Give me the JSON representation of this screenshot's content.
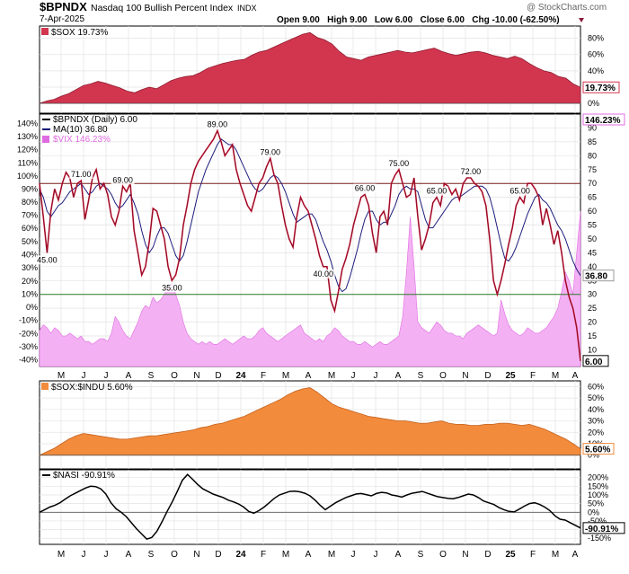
{
  "header": {
    "symbol": "$BPNDX",
    "name": "Nasdaq 100 Bullish Percent Index",
    "exchange": "INDX",
    "date": "7-Apr-2025",
    "credit": "@ StockCharts.com",
    "ohlc": "Open 9.00   High 9.00   Low 6.00   Close 6.00   Chg -10.00 (-62.50%)"
  },
  "months": [
    "M",
    "J",
    "J",
    "A",
    "S",
    "O",
    "N",
    "D",
    "24",
    "F",
    "M",
    "A",
    "M",
    "J",
    "J",
    "A",
    "S",
    "O",
    "N",
    "D",
    "25",
    "F",
    "M",
    "A"
  ],
  "chart_data": [
    {
      "type": "area",
      "panel": "sox",
      "legend": "$SOX 19.73%",
      "last_label": "19.73%",
      "color": "#d2364f",
      "ylim": [
        -12,
        95
      ],
      "yticks": [
        "80%",
        "60%",
        "40%",
        "20%",
        "0%"
      ],
      "ytick_values": [
        80,
        60,
        40,
        20,
        0
      ],
      "baseline": 0,
      "values": [
        0,
        3,
        5,
        9,
        12,
        17,
        22,
        24,
        27,
        25,
        22,
        19,
        15,
        13,
        17,
        20,
        18,
        23,
        28,
        31,
        33,
        34,
        38,
        43,
        46,
        49,
        51,
        53,
        54,
        59,
        63,
        65,
        69,
        73,
        77,
        81,
        85,
        87,
        81,
        78,
        73,
        64,
        57,
        55,
        53,
        57,
        59,
        61,
        63,
        65,
        63,
        62,
        64,
        66,
        68,
        64,
        61,
        59,
        61,
        63,
        64,
        62,
        59,
        57,
        55,
        58,
        55,
        49,
        44,
        40,
        38,
        33,
        31,
        24,
        19.73
      ]
    },
    {
      "type": "line",
      "panel": "bpndx",
      "legend": [
        "$BPNDX (Daily) 6.00",
        "MA(10) 36.80",
        "$VIX 146.23%"
      ],
      "last_labels": {
        "bpndx": "6.00",
        "ma": "36.80",
        "vix": "146.23%"
      },
      "colors": {
        "bpndx": "#cc1133",
        "ma": "#1c1c7c",
        "vix": "#e06be0",
        "vix_fill": "#f3b1f3",
        "upper": "#7a1c1c",
        "lower": "#2a7a2a"
      },
      "ylim": [
        4,
        95
      ],
      "right_ticks": [
        "90",
        "85",
        "80",
        "75",
        "70",
        "65",
        "60",
        "55",
        "50",
        "45",
        "40",
        "35",
        "30",
        "25",
        "20",
        "15",
        "10",
        "5"
      ],
      "right_tick_values": [
        90,
        85,
        80,
        75,
        70,
        65,
        60,
        55,
        50,
        45,
        40,
        35,
        30,
        25,
        20,
        15,
        10,
        5
      ],
      "left_ticks": [
        "140%",
        "130%",
        "120%",
        "110%",
        "100%",
        "90%",
        "80%",
        "70%",
        "60%",
        "50%",
        "40%",
        "30%",
        "20%",
        "10%",
        "0%",
        "-10%",
        "-20%",
        "-30%",
        "-40%"
      ],
      "left_tick_values": [
        91.6,
        86.9,
        82.2,
        77.4,
        72.7,
        68.0,
        63.2,
        58.5,
        53.8,
        49.0,
        44.3,
        39.6,
        34.8,
        30.1,
        25.4,
        20.7,
        15.9,
        11.2,
        6.5
      ],
      "upper_line": 70,
      "lower_line": 30,
      "values": [
        70,
        58,
        45,
        60,
        68,
        64,
        70,
        74,
        72,
        65,
        70,
        71,
        57,
        64,
        72,
        75,
        68,
        70,
        66,
        58,
        55,
        60,
        69,
        67,
        70,
        53,
        45,
        37,
        40,
        49,
        61,
        60,
        55,
        50,
        40,
        35,
        37,
        43,
        55,
        62,
        70,
        75,
        78,
        80,
        82,
        84,
        86,
        89,
        85,
        80,
        82,
        84,
        75,
        70,
        66,
        62,
        60,
        65,
        70,
        72,
        76,
        79,
        73,
        70,
        62,
        55,
        50,
        47,
        58,
        65,
        62,
        60,
        55,
        50,
        44,
        40,
        40,
        28,
        24,
        31,
        39,
        43,
        48,
        55,
        60,
        65,
        66,
        62,
        52,
        45,
        58,
        60,
        55,
        70,
        73,
        75,
        70,
        65,
        66,
        72,
        58,
        46,
        50,
        55,
        63,
        65,
        62,
        70,
        69,
        66,
        68,
        64,
        70,
        72,
        72,
        70,
        69,
        67,
        62,
        50,
        35,
        30,
        35,
        41,
        48,
        54,
        62,
        65,
        63,
        70,
        70,
        68,
        65,
        55,
        61,
        55,
        48,
        53,
        45,
        35,
        29,
        25,
        18,
        6
      ],
      "ma": [
        68,
        65,
        60,
        58,
        60,
        62,
        63,
        65,
        67,
        68,
        69,
        70,
        68,
        66,
        67,
        69,
        70,
        69,
        68,
        66,
        63,
        61,
        62,
        64,
        66,
        63,
        59,
        53,
        48,
        45,
        47,
        51,
        54,
        54,
        52,
        48,
        44,
        42,
        44,
        49,
        55,
        61,
        67,
        71,
        75,
        78,
        81,
        84,
        86,
        85,
        84,
        84,
        82,
        79,
        76,
        73,
        70,
        68,
        67,
        68,
        70,
        72,
        73,
        72,
        70,
        67,
        63,
        59,
        56,
        57,
        58,
        59,
        59,
        57,
        53,
        49,
        46,
        42,
        37,
        33,
        31,
        32,
        36,
        41,
        46,
        52,
        57,
        60,
        60,
        57,
        55,
        56,
        56,
        59,
        62,
        66,
        68,
        69,
        68,
        68,
        67,
        62,
        57,
        54,
        54,
        56,
        58,
        60,
        62,
        64,
        65,
        65,
        66,
        67,
        68,
        69,
        69,
        69,
        68,
        65,
        60,
        54,
        48,
        43,
        42,
        44,
        47,
        51,
        55,
        59,
        62,
        65,
        66,
        64,
        63,
        61,
        58,
        55,
        53,
        50,
        46,
        42,
        39,
        36.8
      ],
      "vix": [
        17,
        19,
        18,
        16,
        18,
        17,
        15,
        15,
        16,
        15,
        14,
        15,
        13,
        13,
        12,
        13,
        14,
        14,
        13,
        16,
        22,
        20,
        17,
        15,
        14,
        17,
        20,
        24,
        26,
        25,
        29,
        27,
        28,
        30,
        33,
        34,
        30,
        26,
        20,
        16,
        14,
        13,
        12,
        13,
        12,
        13,
        12,
        12,
        13,
        14,
        13,
        12,
        13,
        14,
        15,
        14,
        14,
        15,
        17,
        18,
        16,
        15,
        14,
        13,
        14,
        15,
        16,
        17,
        18,
        19,
        16,
        15,
        14,
        13,
        14,
        13,
        15,
        16,
        18,
        17,
        15,
        14,
        13,
        13,
        12,
        12,
        13,
        12,
        11,
        12,
        13,
        12,
        12,
        13,
        14,
        15,
        22,
        38,
        58,
        40,
        20,
        18,
        17,
        16,
        18,
        20,
        19,
        17,
        16,
        16,
        15,
        15,
        14,
        16,
        17,
        18,
        19,
        18,
        17,
        16,
        15,
        16,
        28,
        23,
        19,
        17,
        16,
        15,
        16,
        18,
        17,
        16,
        16,
        17,
        18,
        20,
        22,
        25,
        31,
        38,
        35,
        30,
        45,
        60
      ]
    },
    {
      "type": "area",
      "panel": "sox_indu",
      "legend": "$SOX:$INDU 5.60%",
      "last_label": "5.60%",
      "color": "#f28b3c",
      "ylim": [
        -12,
        65
      ],
      "yticks": [
        "60%",
        "50%",
        "40%",
        "30%",
        "20%",
        "10%",
        "0%"
      ],
      "ytick_values": [
        60,
        50,
        40,
        30,
        20,
        10,
        0
      ],
      "baseline": 0,
      "values": [
        0,
        3,
        6,
        10,
        14,
        17,
        19,
        18,
        17,
        16,
        15,
        14,
        14,
        15,
        16,
        17,
        17,
        18,
        19,
        20,
        21,
        22,
        24,
        25,
        27,
        28,
        30,
        32,
        34,
        37,
        40,
        43,
        46,
        49,
        53,
        56,
        58,
        59,
        55,
        50,
        45,
        42,
        40,
        38,
        36,
        34,
        33,
        32,
        31,
        30,
        30,
        29,
        28,
        28,
        29,
        30,
        28,
        27,
        27,
        26,
        26,
        27,
        27,
        28,
        28,
        27,
        26,
        27,
        25,
        23,
        20,
        17,
        14,
        10,
        5.6
      ]
    },
    {
      "type": "line",
      "panel": "nasi",
      "legend": "$NASI -90.91%",
      "last_label": "-90.91%",
      "color": "#000000",
      "ylim": [
        -185,
        245
      ],
      "yticks": [
        "200%",
        "150%",
        "100%",
        "50%",
        "0%",
        "-50%",
        "-100%",
        "-150%"
      ],
      "ytick_values": [
        200,
        150,
        100,
        50,
        0,
        -50,
        -100,
        -150
      ],
      "baseline": 0,
      "values": [
        0,
        15,
        30,
        40,
        55,
        75,
        95,
        110,
        125,
        140,
        150,
        148,
        135,
        105,
        55,
        20,
        0,
        -25,
        -60,
        -95,
        -125,
        -155,
        -145,
        -110,
        -55,
        5,
        60,
        120,
        185,
        218,
        190,
        160,
        135,
        120,
        105,
        95,
        85,
        70,
        60,
        48,
        30,
        5,
        -5,
        10,
        30,
        55,
        80,
        100,
        110,
        120,
        122,
        118,
        110,
        95,
        70,
        40,
        15,
        35,
        55,
        70,
        85,
        95,
        105,
        108,
        102,
        95,
        108,
        115,
        112,
        100,
        95,
        88,
        100,
        110,
        115,
        120,
        110,
        100,
        90,
        85,
        80,
        78,
        85,
        95,
        105,
        100,
        85,
        65,
        55,
        45,
        28,
        15,
        5,
        2,
        18,
        35,
        50,
        55,
        45,
        30,
        10,
        -20,
        -40,
        -45,
        -60,
        -75,
        -90.91
      ]
    }
  ]
}
